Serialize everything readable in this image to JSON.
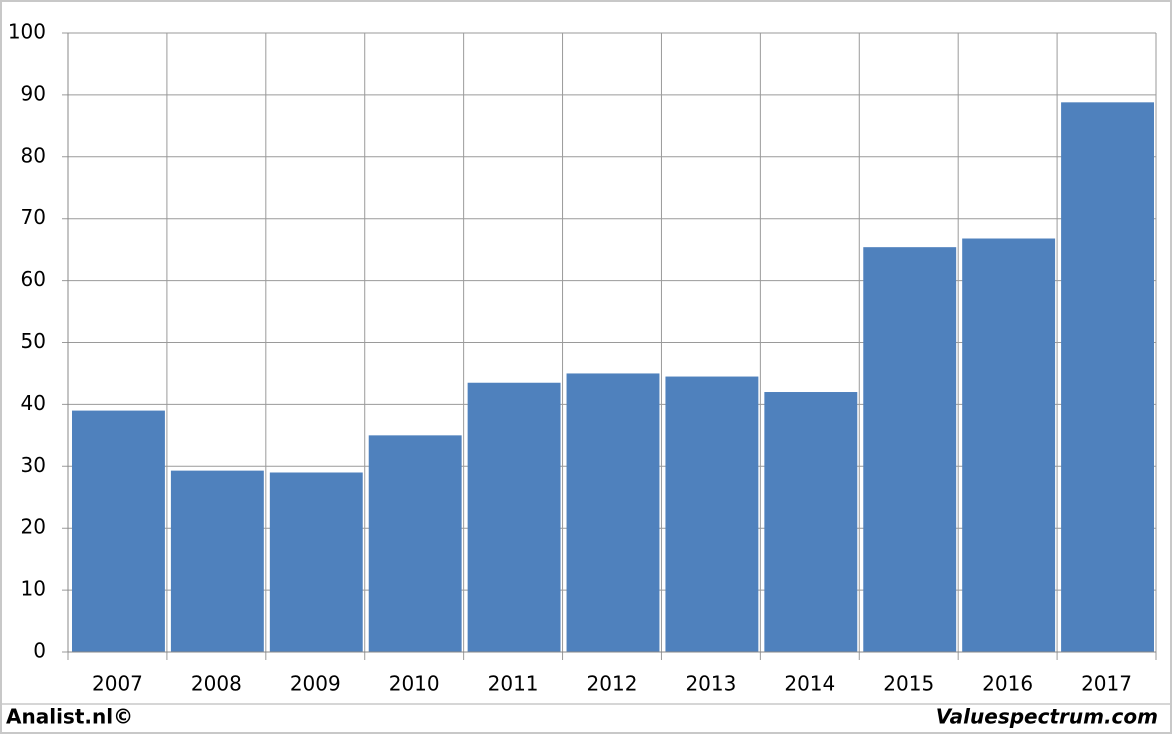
{
  "chart_data": {
    "type": "bar",
    "categories": [
      "2007",
      "2008",
      "2009",
      "2010",
      "2011",
      "2012",
      "2013",
      "2014",
      "2015",
      "2016",
      "2017"
    ],
    "values": [
      39,
      29.3,
      29,
      35,
      43.5,
      45,
      44.5,
      42,
      65.4,
      66.8,
      88.8
    ],
    "color": "#4f81bd",
    "ylim": [
      0,
      100
    ],
    "yticks": [
      0,
      10,
      20,
      30,
      40,
      50,
      60,
      70,
      80,
      90,
      100
    ],
    "grid": true
  },
  "footer": {
    "left": "Analist.nl©",
    "right": "Valuespectrum.com"
  }
}
